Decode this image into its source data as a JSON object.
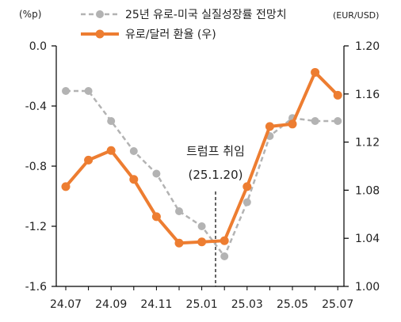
{
  "chart_data": {
    "type": "line",
    "left_axis_unit": "(%p)",
    "right_axis_unit": "(EUR/USD)",
    "x": [
      "24.07",
      "24.08",
      "24.09",
      "24.10",
      "24.11",
      "24.12",
      "25.01",
      "25.02",
      "25.03",
      "25.04",
      "25.05",
      "25.06",
      "25.07"
    ],
    "x_tick_labels": [
      "24.07",
      "24.09",
      "24.11",
      "25.01",
      "25.03",
      "25.05",
      "25.07"
    ],
    "y_left_ticks": [
      "0.0",
      "-0.4",
      "-0.8",
      "-1.2",
      "-1.6"
    ],
    "y_right_ticks": [
      "1.20",
      "1.16",
      "1.12",
      "1.08",
      "1.04",
      "1.00"
    ],
    "ylim_left": [
      -1.6,
      0.0
    ],
    "ylim_right": [
      1.0,
      1.2
    ],
    "grid": false,
    "legend_position": "top",
    "series": [
      {
        "name": "25년 유로-미국 실질성장률 전망치",
        "axis": "left",
        "color": "#b3b3b3",
        "style": "dashed",
        "values": [
          -0.3,
          -0.3,
          -0.5,
          -0.7,
          -0.85,
          -1.1,
          -1.2,
          -1.4,
          -1.04,
          -0.6,
          -0.48,
          -0.5,
          -0.5
        ]
      },
      {
        "name": "유로/달러 환율 (우)",
        "axis": "right",
        "color": "#ed7d31",
        "style": "solid",
        "values": [
          1.083,
          1.105,
          1.113,
          1.089,
          1.058,
          1.036,
          1.037,
          1.038,
          1.083,
          1.133,
          1.135,
          1.178,
          1.159
        ]
      }
    ],
    "annotation": {
      "title": "트럼프 취임",
      "date": "(25.1.20)",
      "x_position": "25.01.20"
    }
  }
}
